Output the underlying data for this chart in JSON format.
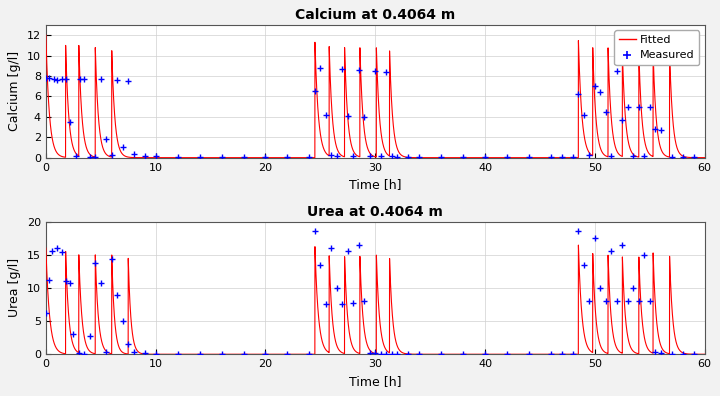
{
  "title1": "Calcium at 0.4064 m",
  "title2": "Urea at 0.4064 m",
  "xlabel": "Time [h]",
  "ylabel1": "Calcium [g/l]",
  "ylabel2": "Urea [g/l]",
  "xlim": [
    0,
    60
  ],
  "ylim1": [
    0,
    13
  ],
  "ylim2": [
    0,
    20
  ],
  "yticks1": [
    0,
    2,
    4,
    6,
    8,
    10,
    12
  ],
  "yticks2": [
    0,
    5,
    10,
    15,
    20
  ],
  "xticks": [
    0,
    10,
    20,
    30,
    40,
    50,
    60
  ],
  "legend_labels": [
    "Fitted",
    "Measured"
  ],
  "fitted_color": "#FF0000",
  "measured_color": "#0000FF",
  "bg_color": "#F2F2F2",
  "plot_bg": "#FFFFFF",
  "ca_measured_x": [
    0.05,
    0.3,
    0.7,
    1.0,
    1.5,
    1.8,
    2.2,
    2.7,
    3.1,
    3.5,
    4.0,
    4.5,
    5.0,
    5.5,
    6.0,
    6.5,
    7.0,
    7.5,
    8.0,
    9.0,
    10.0,
    12.0,
    14.0,
    16.0,
    18.0,
    20.0,
    22.0,
    24.0,
    24.5,
    25.0,
    25.5,
    26.0,
    26.5,
    27.0,
    27.5,
    28.0,
    28.5,
    29.0,
    29.5,
    30.0,
    30.5,
    31.0,
    31.5,
    32.0,
    33.0,
    34.0,
    36.0,
    38.0,
    40.0,
    42.0,
    44.0,
    46.0,
    47.0,
    48.0,
    48.5,
    49.0,
    49.5,
    50.0,
    50.5,
    51.0,
    51.5,
    52.0,
    52.5,
    53.0,
    53.5,
    54.0,
    54.5,
    55.0,
    55.5,
    56.0,
    57.0,
    58.0,
    59.0
  ],
  "ca_measured_y": [
    7.8,
    7.8,
    7.7,
    7.6,
    7.7,
    7.7,
    3.5,
    0.15,
    7.7,
    7.7,
    0.1,
    0.05,
    7.7,
    1.8,
    0.3,
    7.6,
    1.0,
    7.5,
    0.4,
    0.2,
    0.15,
    0.1,
    0.05,
    0.05,
    0.05,
    0.05,
    0.05,
    0.05,
    6.5,
    8.8,
    4.2,
    0.25,
    0.15,
    8.7,
    4.1,
    0.2,
    8.6,
    4.0,
    0.2,
    8.5,
    0.15,
    8.4,
    0.15,
    0.1,
    0.05,
    0.05,
    0.05,
    0.05,
    0.05,
    0.05,
    0.05,
    0.05,
    0.05,
    0.05,
    6.2,
    4.2,
    0.25,
    7.0,
    6.4,
    4.5,
    0.2,
    8.5,
    3.7,
    5.0,
    0.2,
    5.0,
    0.15,
    5.0,
    2.8,
    2.7,
    0.1,
    0.1,
    0.1
  ],
  "ur_measured_x": [
    0.05,
    0.3,
    0.6,
    1.0,
    1.5,
    1.8,
    2.2,
    2.5,
    3.0,
    3.5,
    4.0,
    4.5,
    5.0,
    5.5,
    6.0,
    6.5,
    7.0,
    7.5,
    8.0,
    9.0,
    10.0,
    12.0,
    14.0,
    16.0,
    18.0,
    20.0,
    22.0,
    24.0,
    24.5,
    25.0,
    25.5,
    26.0,
    26.5,
    27.0,
    27.5,
    28.0,
    28.5,
    29.0,
    29.5,
    30.0,
    30.5,
    31.0,
    31.5,
    32.0,
    33.0,
    34.0,
    36.0,
    38.0,
    40.0,
    42.0,
    44.0,
    46.0,
    47.0,
    48.0,
    48.5,
    49.0,
    49.5,
    50.0,
    50.5,
    51.0,
    51.5,
    52.0,
    52.5,
    53.0,
    53.5,
    54.0,
    54.5,
    55.0,
    55.5,
    56.0,
    57.0,
    58.0,
    59.0
  ],
  "ur_measured_y": [
    6.2,
    11.2,
    15.5,
    16.0,
    15.4,
    11.0,
    10.8,
    3.0,
    0.2,
    0.1,
    2.7,
    13.7,
    10.7,
    0.4,
    14.4,
    9.0,
    5.0,
    1.5,
    0.35,
    0.2,
    0.1,
    0.05,
    0.05,
    0.05,
    0.05,
    0.05,
    0.05,
    0.05,
    18.5,
    13.5,
    7.5,
    16.0,
    10.0,
    7.5,
    15.5,
    7.7,
    16.5,
    8.0,
    0.15,
    0.15,
    0.1,
    0.1,
    0.1,
    0.05,
    0.05,
    0.05,
    0.05,
    0.05,
    0.05,
    0.05,
    0.05,
    0.05,
    0.05,
    0.05,
    18.5,
    13.5,
    8.0,
    17.5,
    10.0,
    8.0,
    15.5,
    8.0,
    16.5,
    8.0,
    10.0,
    8.0,
    15.0,
    8.0,
    0.4,
    0.15,
    0.1,
    0.1,
    0.05
  ]
}
